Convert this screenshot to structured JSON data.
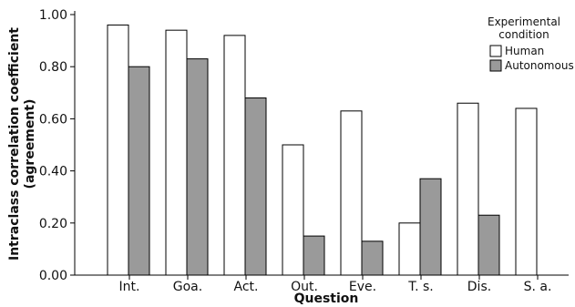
{
  "chart_data": {
    "type": "bar",
    "title": "",
    "xlabel": "Question",
    "ylabel_line1": "Intraclass correlation coefficient",
    "ylabel_line2": "(agreement)",
    "ylim": [
      0,
      1
    ],
    "yticks": [
      "0.00",
      "0.20",
      "0.40",
      "0.60",
      "0.80",
      "1.00"
    ],
    "categories": [
      "Int.",
      "Goa.",
      "Act.",
      "Out.",
      "Eve.",
      "T. s.",
      "Dis.",
      "S. a."
    ],
    "series": [
      {
        "name": "Human",
        "color": "#ffffff",
        "values": [
          0.96,
          0.94,
          0.92,
          0.5,
          0.63,
          0.2,
          0.66,
          0.64
        ]
      },
      {
        "name": "Autonomous",
        "color": "#9a9a9a",
        "values": [
          0.8,
          0.83,
          0.68,
          0.15,
          0.13,
          0.37,
          0.23,
          0.0
        ]
      }
    ],
    "legend": {
      "title_line1": "Experimental",
      "title_line2": "condition",
      "placement": "top-right"
    },
    "grid": false
  }
}
